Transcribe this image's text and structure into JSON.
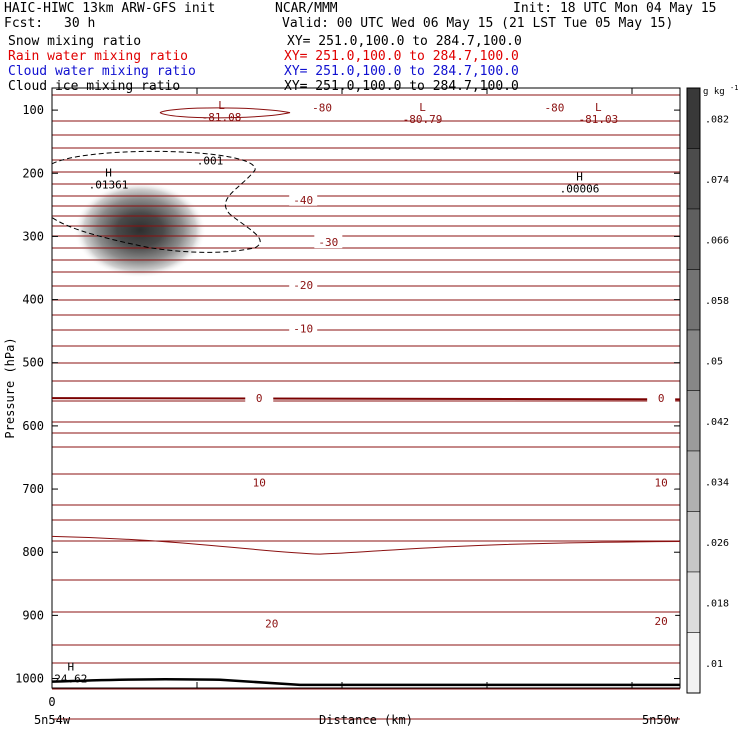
{
  "header": {
    "title": "HAIC-HIWC 13km ARW-GFS init",
    "center": "NCAR/MMM",
    "init": "Init: 18 UTC Mon 04 May 15",
    "fcst_label": "Fcst:",
    "fcst_value": "30 h",
    "valid": "Valid: 00 UTC Wed 06 May 15 (21 LST Tue 05 May 15)"
  },
  "fields": [
    {
      "name": "Snow mixing ratio",
      "xy": "XY= 251.0,100.0 to 284.7,100.0",
      "color": "#000000"
    },
    {
      "name": "Rain water mixing ratio",
      "xy": "XY= 251.0,100.0 to 284.7,100.0",
      "color": "#e00000"
    },
    {
      "name": "Cloud water mixing ratio",
      "xy": "XY= 251.0,100.0 to 284.7,100.0",
      "color": "#1010d0"
    },
    {
      "name": "Cloud ice mixing ratio",
      "xy": "XY= 251.0,100.0 to 284.7,100.0",
      "color": "#000000"
    }
  ],
  "chart_data": {
    "type": "cross-section",
    "xlabel": "Distance (km)",
    "ylabel": "Pressure (hPa)",
    "x_tick_labels": [
      "0"
    ],
    "x_left_label": "5n54w",
    "x_right_label": "5n50w",
    "y_ticks": [
      100,
      200,
      300,
      400,
      500,
      600,
      700,
      800,
      900,
      1000
    ],
    "ylim": [
      1015,
      65
    ],
    "colorbar": {
      "unit_base": "g kg",
      "unit_exp": "-1",
      "levels": [
        ".082",
        ".074",
        ".066",
        ".058",
        ".05",
        ".042",
        ".034",
        ".026",
        ".018",
        ".01"
      ]
    },
    "temperature_contour_labels": [
      {
        "text": "-80",
        "x": 0.43,
        "p": 96
      },
      {
        "text": "-80",
        "x": 0.8,
        "p": 96
      },
      {
        "text": "-40",
        "x": 0.4,
        "p": 242
      },
      {
        "text": "-30",
        "x": 0.44,
        "p": 309
      },
      {
        "text": "-20",
        "x": 0.4,
        "p": 377
      },
      {
        "text": "-10",
        "x": 0.4,
        "p": 446
      },
      {
        "text": "0",
        "x": 0.33,
        "p": 556
      },
      {
        "text": "0",
        "x": 0.97,
        "p": 556
      },
      {
        "text": "10",
        "x": 0.33,
        "p": 690
      },
      {
        "text": "10",
        "x": 0.97,
        "p": 690
      },
      {
        "text": "20",
        "x": 0.35,
        "p": 913
      },
      {
        "text": "20",
        "x": 0.97,
        "p": 909
      }
    ],
    "extrema": [
      {
        "type": "L",
        "value": "-81.08",
        "x": 0.27,
        "p": 108
      },
      {
        "type": "L",
        "value": "-80.79",
        "x": 0.59,
        "p": 111
      },
      {
        "type": "L",
        "value": "-81.03",
        "x": 0.87,
        "p": 111
      },
      {
        "type": "H",
        "value": ".01361",
        "x": 0.09,
        "p": 215
      },
      {
        "type": "H",
        "value": ".00006",
        "x": 0.84,
        "p": 221
      },
      {
        "type": "H",
        "value": "24.62",
        "x": 0.03,
        "p": 997
      }
    ],
    "cloud_contour_label": ".001",
    "shaded_max": {
      "x": 0.14,
      "p": 285,
      "value": 0.082
    }
  }
}
